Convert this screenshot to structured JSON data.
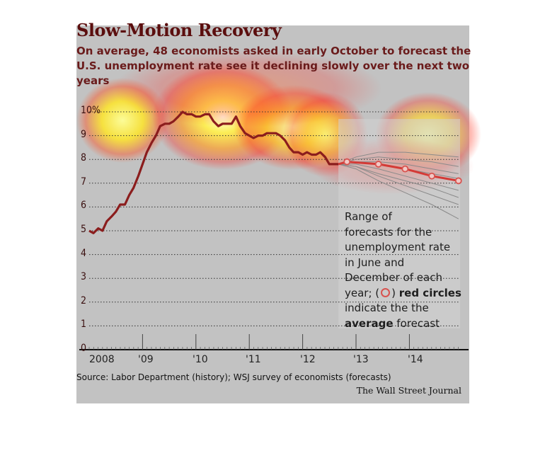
{
  "header": {
    "title": "Slow-Motion Recovery",
    "subtitle": "On average, 48 economists asked in early October to forecast the U.S. unemployment rate see it declining slowly over the next two years"
  },
  "note": {
    "line1": "Range of",
    "line2": "forecasts for the",
    "line3": "unemployment rate",
    "line4": "in June and",
    "line5": "December of each",
    "line6_pre": "year; (",
    "line6_post": ")",
    "line6_bold": "red circles",
    "line7": "indicate the the",
    "line8_bold": "average",
    "line8_post": "forecast"
  },
  "footer": {
    "source": "Source: Labor Department (history); WSJ survey of economists (forecasts)",
    "credit": "The Wall Street Journal"
  },
  "colors": {
    "panel": "#c2c2c2",
    "history_line": "#8b1d1d",
    "forecast_line": "#d43a36",
    "range_lines": "#8a8a8a",
    "forecast_band": "#d4d4d4",
    "title": "#5b0e0e"
  },
  "chart_data": {
    "type": "line",
    "ylim": [
      0,
      10
    ],
    "xlim": [
      2008,
      2015
    ],
    "y_ticks": [
      "0",
      "1",
      "2",
      "3",
      "4",
      "5",
      "6",
      "7",
      "8",
      "9",
      "10%"
    ],
    "x_ticks": [
      "2008",
      "'09",
      "'10",
      "'11",
      "'12",
      "'13",
      "'14"
    ],
    "series": [
      {
        "x": [
          2008.0,
          2008.08,
          2008.17,
          2008.25,
          2008.33,
          2008.42,
          2008.5,
          2008.58,
          2008.67,
          2008.75,
          2008.83,
          2008.92,
          2009.0,
          2009.08,
          2009.17,
          2009.25,
          2009.33,
          2009.42,
          2009.5,
          2009.58,
          2009.67,
          2009.75,
          2009.83,
          2009.92,
          2010.0,
          2010.08,
          2010.17,
          2010.25,
          2010.33,
          2010.42,
          2010.5,
          2010.58,
          2010.67,
          2010.75,
          2010.83,
          2010.92,
          2011.0,
          2011.08,
          2011.17,
          2011.25,
          2011.33,
          2011.42,
          2011.5,
          2011.58,
          2011.67,
          2011.75,
          2011.83,
          2011.92,
          2012.0,
          2012.08,
          2012.17,
          2012.25,
          2012.33,
          2012.42,
          2012.5,
          2012.58,
          2012.67
        ],
        "values": [
          5.0,
          4.9,
          5.1,
          5.0,
          5.4,
          5.6,
          5.8,
          6.1,
          6.1,
          6.5,
          6.8,
          7.3,
          7.8,
          8.3,
          8.7,
          9.0,
          9.4,
          9.5,
          9.5,
          9.6,
          9.8,
          10.0,
          9.9,
          9.9,
          9.8,
          9.8,
          9.9,
          9.9,
          9.6,
          9.4,
          9.5,
          9.5,
          9.5,
          9.8,
          9.4,
          9.1,
          9.0,
          8.9,
          9.0,
          9.0,
          9.1,
          9.1,
          9.1,
          9.0,
          8.8,
          8.5,
          8.3,
          8.3,
          8.2,
          8.3,
          8.2,
          8.2,
          8.3,
          8.1,
          7.8,
          7.8,
          7.8
        ]
      },
      {
        "x": [
          2012.67,
          2012.83,
          2013.42,
          2013.92,
          2014.42,
          2014.92
        ],
        "values": [
          7.8,
          7.9,
          7.8,
          7.6,
          7.3,
          7.1
        ]
      }
    ],
    "forecast_ranges": [
      {
        "x": [
          2012.67,
          2013.0,
          2013.42,
          2013.92,
          2014.42,
          2014.92
        ],
        "values": [
          7.8,
          8.1,
          8.3,
          8.3,
          8.2,
          8.1
        ]
      },
      {
        "x": [
          2012.67,
          2013.0,
          2013.42,
          2013.92,
          2014.42,
          2014.92
        ],
        "values": [
          7.8,
          8.0,
          8.1,
          8.0,
          7.9,
          7.7
        ]
      },
      {
        "x": [
          2012.67,
          2013.0,
          2013.42,
          2013.92,
          2014.42,
          2014.92
        ],
        "values": [
          7.8,
          7.9,
          7.9,
          7.8,
          7.6,
          7.4
        ]
      },
      {
        "x": [
          2012.67,
          2013.0,
          2013.42,
          2013.92,
          2014.42,
          2014.92
        ],
        "values": [
          7.8,
          7.9,
          7.8,
          7.6,
          7.4,
          7.2
        ]
      },
      {
        "x": [
          2012.67,
          2013.0,
          2013.42,
          2013.92,
          2014.42,
          2014.92
        ],
        "values": [
          7.8,
          7.8,
          7.6,
          7.3,
          7.0,
          6.7
        ]
      },
      {
        "x": [
          2012.67,
          2013.0,
          2013.42,
          2013.92,
          2014.42,
          2014.92
        ],
        "values": [
          7.8,
          7.7,
          7.4,
          7.1,
          6.8,
          6.4
        ]
      },
      {
        "x": [
          2012.67,
          2013.0,
          2013.42,
          2013.92,
          2014.42,
          2014.92
        ],
        "values": [
          7.8,
          7.7,
          7.3,
          6.9,
          6.5,
          6.1
        ]
      },
      {
        "x": [
          2012.67,
          2013.0,
          2013.42,
          2013.92,
          2014.42,
          2014.92
        ],
        "values": [
          7.8,
          7.6,
          7.1,
          6.6,
          6.1,
          5.5
        ]
      }
    ],
    "forecast_points": {
      "x": [
        2012.83,
        2013.42,
        2013.92,
        2014.42,
        2014.92
      ],
      "values": [
        7.9,
        7.8,
        7.6,
        7.3,
        7.1
      ]
    },
    "grid": true
  }
}
